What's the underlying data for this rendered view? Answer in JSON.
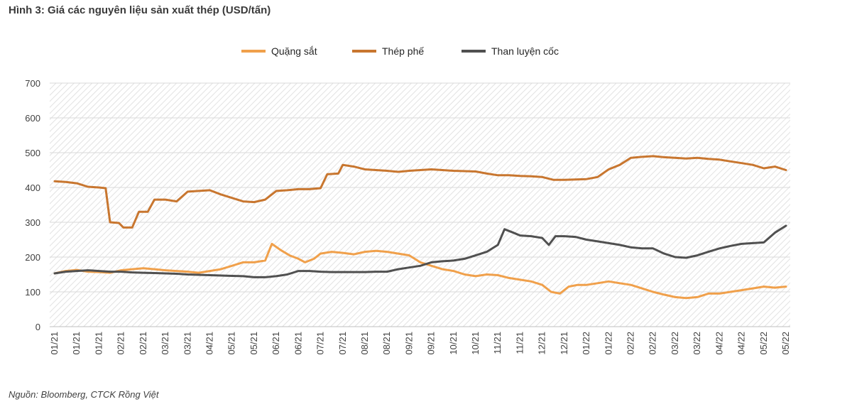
{
  "title": "Hình 3: Giá các nguyên liệu sản xuất thép (USD/tấn)",
  "source": "Nguồn: Bloomberg, CTCK Rồng Việt",
  "chart_data": {
    "type": "line",
    "title": "Hình 3: Giá các nguyên liệu sản xuất thép (USD/tấn)",
    "xlabel": "",
    "ylabel": "",
    "ylim": [
      0,
      700
    ],
    "yticks": [
      0,
      100,
      200,
      300,
      400,
      500,
      600,
      700
    ],
    "grid": "hatched background",
    "legend_position": "top-center",
    "x_tick_labels": [
      "01/21",
      "01/21",
      "01/21",
      "02/21",
      "02/21",
      "03/21",
      "03/21",
      "04/21",
      "05/21",
      "05/21",
      "06/21",
      "06/21",
      "07/21",
      "07/21",
      "08/21",
      "08/21",
      "09/21",
      "09/21",
      "10/21",
      "10/21",
      "11/21",
      "11/21",
      "12/21",
      "12/21",
      "01/22",
      "01/22",
      "02/22",
      "02/22",
      "03/22",
      "03/22",
      "04/22",
      "04/22",
      "05/22",
      "05/22"
    ],
    "x_domain": [
      0,
      33
    ],
    "series": [
      {
        "name": "Quặng sắt",
        "color": "#f0a04b",
        "points": [
          [
            0,
            153
          ],
          [
            0.5,
            160
          ],
          [
            1,
            163
          ],
          [
            1.5,
            158
          ],
          [
            2,
            157
          ],
          [
            2.5,
            155
          ],
          [
            3,
            162
          ],
          [
            3.5,
            165
          ],
          [
            4,
            168
          ],
          [
            4.5,
            165
          ],
          [
            5,
            162
          ],
          [
            5.5,
            160
          ],
          [
            6,
            158
          ],
          [
            6.5,
            155
          ],
          [
            7,
            160
          ],
          [
            7.5,
            165
          ],
          [
            8,
            175
          ],
          [
            8.5,
            185
          ],
          [
            9,
            185
          ],
          [
            9.5,
            190
          ],
          [
            9.8,
            238
          ],
          [
            10.2,
            220
          ],
          [
            10.6,
            205
          ],
          [
            11,
            195
          ],
          [
            11.3,
            185
          ],
          [
            11.7,
            195
          ],
          [
            12,
            210
          ],
          [
            12.5,
            215
          ],
          [
            13,
            212
          ],
          [
            13.5,
            208
          ],
          [
            14,
            215
          ],
          [
            14.5,
            218
          ],
          [
            15,
            215
          ],
          [
            15.5,
            210
          ],
          [
            16,
            205
          ],
          [
            16.5,
            185
          ],
          [
            17,
            175
          ],
          [
            17.5,
            165
          ],
          [
            18,
            160
          ],
          [
            18.5,
            150
          ],
          [
            19,
            145
          ],
          [
            19.5,
            150
          ],
          [
            20,
            148
          ],
          [
            20.5,
            140
          ],
          [
            21,
            135
          ],
          [
            21.5,
            130
          ],
          [
            22,
            120
          ],
          [
            22.4,
            100
          ],
          [
            22.8,
            95
          ],
          [
            23.2,
            115
          ],
          [
            23.6,
            120
          ],
          [
            24,
            120
          ],
          [
            24.5,
            125
          ],
          [
            25,
            130
          ],
          [
            25.5,
            125
          ],
          [
            26,
            120
          ],
          [
            26.5,
            110
          ],
          [
            27,
            100
          ],
          [
            27.5,
            92
          ],
          [
            28,
            85
          ],
          [
            28.5,
            82
          ],
          [
            29,
            85
          ],
          [
            29.5,
            95
          ],
          [
            30,
            95
          ],
          [
            30.5,
            100
          ],
          [
            31,
            105
          ],
          [
            31.5,
            110
          ],
          [
            32,
            115
          ],
          [
            32.5,
            112
          ],
          [
            33,
            115
          ]
        ]
      },
      {
        "name": "Thép phế",
        "color": "#c8762f",
        "points": [
          [
            0,
            418
          ],
          [
            0.5,
            416
          ],
          [
            1,
            412
          ],
          [
            1.5,
            402
          ],
          [
            2,
            400
          ],
          [
            2.3,
            398
          ],
          [
            2.5,
            300
          ],
          [
            2.9,
            298
          ],
          [
            3.1,
            285
          ],
          [
            3.5,
            285
          ],
          [
            3.8,
            330
          ],
          [
            4.2,
            330
          ],
          [
            4.5,
            365
          ],
          [
            5,
            365
          ],
          [
            5.5,
            360
          ],
          [
            6,
            388
          ],
          [
            6.5,
            390
          ],
          [
            7,
            392
          ],
          [
            7.5,
            380
          ],
          [
            8,
            370
          ],
          [
            8.5,
            360
          ],
          [
            9,
            358
          ],
          [
            9.5,
            365
          ],
          [
            10,
            390
          ],
          [
            10.5,
            392
          ],
          [
            11,
            395
          ],
          [
            11.5,
            395
          ],
          [
            12,
            398
          ],
          [
            12.3,
            438
          ],
          [
            12.8,
            440
          ],
          [
            13,
            465
          ],
          [
            13.5,
            460
          ],
          [
            14,
            452
          ],
          [
            14.5,
            450
          ],
          [
            15,
            448
          ],
          [
            15.5,
            445
          ],
          [
            16,
            448
          ],
          [
            16.5,
            450
          ],
          [
            17,
            452
          ],
          [
            17.5,
            450
          ],
          [
            18,
            448
          ],
          [
            18.5,
            447
          ],
          [
            19,
            446
          ],
          [
            19.5,
            440
          ],
          [
            20,
            435
          ],
          [
            20.5,
            435
          ],
          [
            21,
            433
          ],
          [
            21.5,
            432
          ],
          [
            22,
            430
          ],
          [
            22.5,
            422
          ],
          [
            23,
            422
          ],
          [
            23.5,
            423
          ],
          [
            24,
            424
          ],
          [
            24.5,
            430
          ],
          [
            25,
            452
          ],
          [
            25.5,
            465
          ],
          [
            26,
            485
          ],
          [
            26.5,
            488
          ],
          [
            27,
            490
          ],
          [
            27.5,
            487
          ],
          [
            28,
            485
          ],
          [
            28.5,
            483
          ],
          [
            29,
            485
          ],
          [
            29.5,
            482
          ],
          [
            30,
            480
          ],
          [
            30.5,
            475
          ],
          [
            31,
            470
          ],
          [
            31.5,
            465
          ],
          [
            32,
            455
          ],
          [
            32.5,
            460
          ],
          [
            33,
            450
          ]
        ]
      },
      {
        "name": "Than luyện cốc",
        "color": "#505050",
        "points": [
          [
            0,
            153
          ],
          [
            0.5,
            158
          ],
          [
            1,
            160
          ],
          [
            1.5,
            162
          ],
          [
            2,
            160
          ],
          [
            2.5,
            158
          ],
          [
            3,
            158
          ],
          [
            3.5,
            156
          ],
          [
            4,
            155
          ],
          [
            4.5,
            154
          ],
          [
            5,
            153
          ],
          [
            5.5,
            152
          ],
          [
            6,
            150
          ],
          [
            6.5,
            149
          ],
          [
            7,
            148
          ],
          [
            7.5,
            147
          ],
          [
            8,
            146
          ],
          [
            8.5,
            145
          ],
          [
            9,
            142
          ],
          [
            9.5,
            142
          ],
          [
            10,
            145
          ],
          [
            10.5,
            150
          ],
          [
            11,
            160
          ],
          [
            11.5,
            160
          ],
          [
            12,
            158
          ],
          [
            12.5,
            157
          ],
          [
            13,
            157
          ],
          [
            13.5,
            157
          ],
          [
            14,
            157
          ],
          [
            14.5,
            158
          ],
          [
            15,
            158
          ],
          [
            15.5,
            165
          ],
          [
            16,
            170
          ],
          [
            16.5,
            175
          ],
          [
            17,
            185
          ],
          [
            17.5,
            188
          ],
          [
            18,
            190
          ],
          [
            18.5,
            195
          ],
          [
            19,
            205
          ],
          [
            19.5,
            215
          ],
          [
            20,
            235
          ],
          [
            20.3,
            280
          ],
          [
            20.7,
            270
          ],
          [
            21,
            262
          ],
          [
            21.5,
            260
          ],
          [
            22,
            255
          ],
          [
            22.3,
            235
          ],
          [
            22.6,
            260
          ],
          [
            23,
            260
          ],
          [
            23.5,
            258
          ],
          [
            24,
            250
          ],
          [
            24.5,
            245
          ],
          [
            25,
            240
          ],
          [
            25.5,
            235
          ],
          [
            26,
            228
          ],
          [
            26.5,
            225
          ],
          [
            27,
            225
          ],
          [
            27.5,
            210
          ],
          [
            28,
            200
          ],
          [
            28.5,
            198
          ],
          [
            29,
            205
          ],
          [
            29.5,
            215
          ],
          [
            30,
            225
          ],
          [
            30.5,
            232
          ],
          [
            31,
            238
          ],
          [
            31.5,
            240
          ],
          [
            32,
            242
          ],
          [
            32.5,
            270
          ],
          [
            33,
            290
          ]
        ]
      }
    ]
  }
}
